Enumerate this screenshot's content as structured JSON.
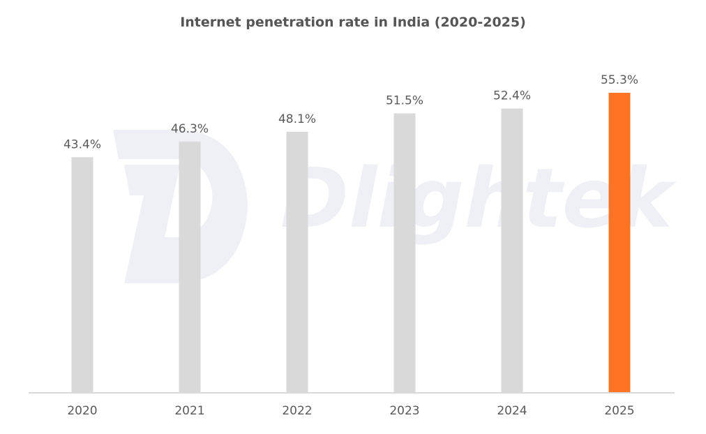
{
  "chart_data": {
    "type": "bar",
    "title": "Internet penetration rate in India (2020-2025)",
    "categories": [
      "2020",
      "2021",
      "2022",
      "2023",
      "2024",
      "2025"
    ],
    "values": [
      43.4,
      46.3,
      48.1,
      51.5,
      52.4,
      55.3
    ],
    "data_labels": [
      "43.4%",
      "46.3%",
      "48.1%",
      "51.5%",
      "52.4%",
      "55.3%"
    ],
    "xlabel": "",
    "ylabel": "",
    "ylim": [
      0,
      55.3
    ],
    "grid": false,
    "legend": "none",
    "colors": {
      "default": "#d9d9d9",
      "highlight": "#ff7424",
      "axis": "#d9d9d9"
    },
    "highlight_index": 5
  },
  "watermark": {
    "text": "Dlightek",
    "color": "#eef0f5"
  }
}
